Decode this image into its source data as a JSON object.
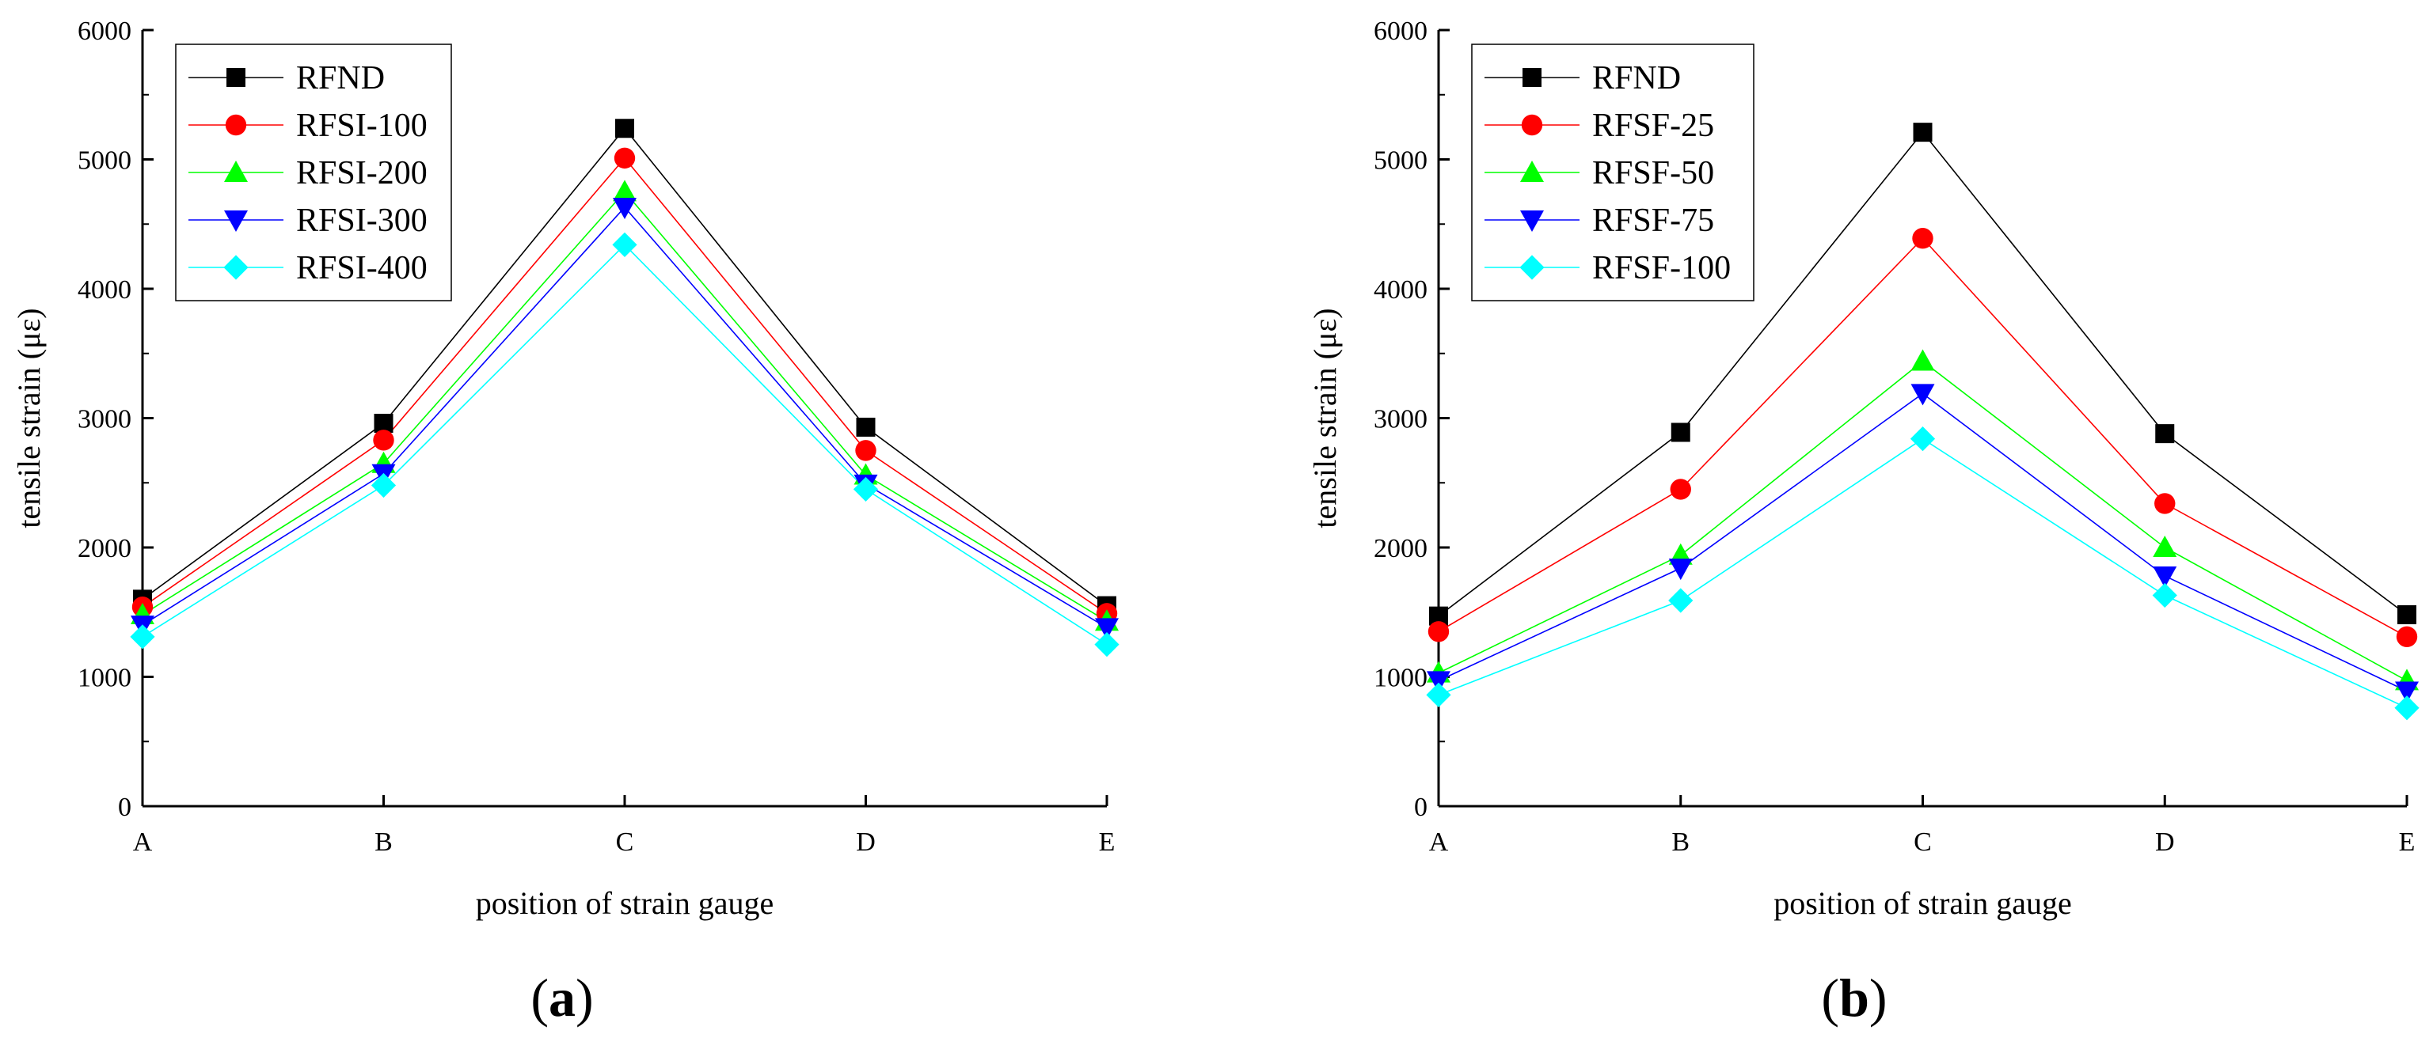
{
  "chart_data": [
    {
      "panel_label": "a",
      "type": "line",
      "categories": [
        "A",
        "B",
        "C",
        "D",
        "E"
      ],
      "xlabel": "position of strain gauge",
      "ylabel": "tensile strain (με)",
      "ylim": [
        0,
        6000
      ],
      "yticks": [
        0,
        1000,
        2000,
        3000,
        4000,
        5000,
        6000
      ],
      "grid": false,
      "legend_position": "top-left",
      "series": [
        {
          "name": "RFND",
          "color": "#000000",
          "marker": "square",
          "values": [
            1600,
            2960,
            5240,
            2930,
            1550
          ]
        },
        {
          "name": "RFSI-100",
          "color": "#ff0000",
          "marker": "circle",
          "values": [
            1540,
            2830,
            5010,
            2750,
            1490
          ]
        },
        {
          "name": "RFSI-200",
          "color": "#00ff00",
          "marker": "triangle-up",
          "values": [
            1480,
            2650,
            4750,
            2560,
            1430
          ]
        },
        {
          "name": "RFSI-300",
          "color": "#0000ff",
          "marker": "triangle-down",
          "values": [
            1400,
            2570,
            4630,
            2490,
            1380
          ]
        },
        {
          "name": "RFSI-400",
          "color": "#00ffff",
          "marker": "diamond",
          "values": [
            1310,
            2480,
            4340,
            2450,
            1250
          ]
        }
      ]
    },
    {
      "panel_label": "b",
      "type": "line",
      "categories": [
        "A",
        "B",
        "C",
        "D",
        "E"
      ],
      "xlabel": "position of strain gauge",
      "ylabel": "tensile strain (με)",
      "ylim": [
        0,
        6000
      ],
      "yticks": [
        0,
        1000,
        2000,
        3000,
        4000,
        5000,
        6000
      ],
      "grid": false,
      "legend_position": "top-left",
      "series": [
        {
          "name": "RFND",
          "color": "#000000",
          "marker": "square",
          "values": [
            1470,
            2890,
            5210,
            2880,
            1480
          ]
        },
        {
          "name": "RFSF-25",
          "color": "#ff0000",
          "marker": "circle",
          "values": [
            1350,
            2450,
            4390,
            2340,
            1310
          ]
        },
        {
          "name": "RFSF-50",
          "color": "#00ff00",
          "marker": "triangle-up",
          "values": [
            1030,
            1940,
            3440,
            2000,
            970
          ]
        },
        {
          "name": "RFSF-75",
          "color": "#0000ff",
          "marker": "triangle-down",
          "values": [
            970,
            1840,
            3190,
            1780,
            890
          ]
        },
        {
          "name": "RFSF-100",
          "color": "#00ffff",
          "marker": "diamond",
          "values": [
            860,
            1590,
            2840,
            1630,
            760
          ]
        }
      ]
    }
  ]
}
